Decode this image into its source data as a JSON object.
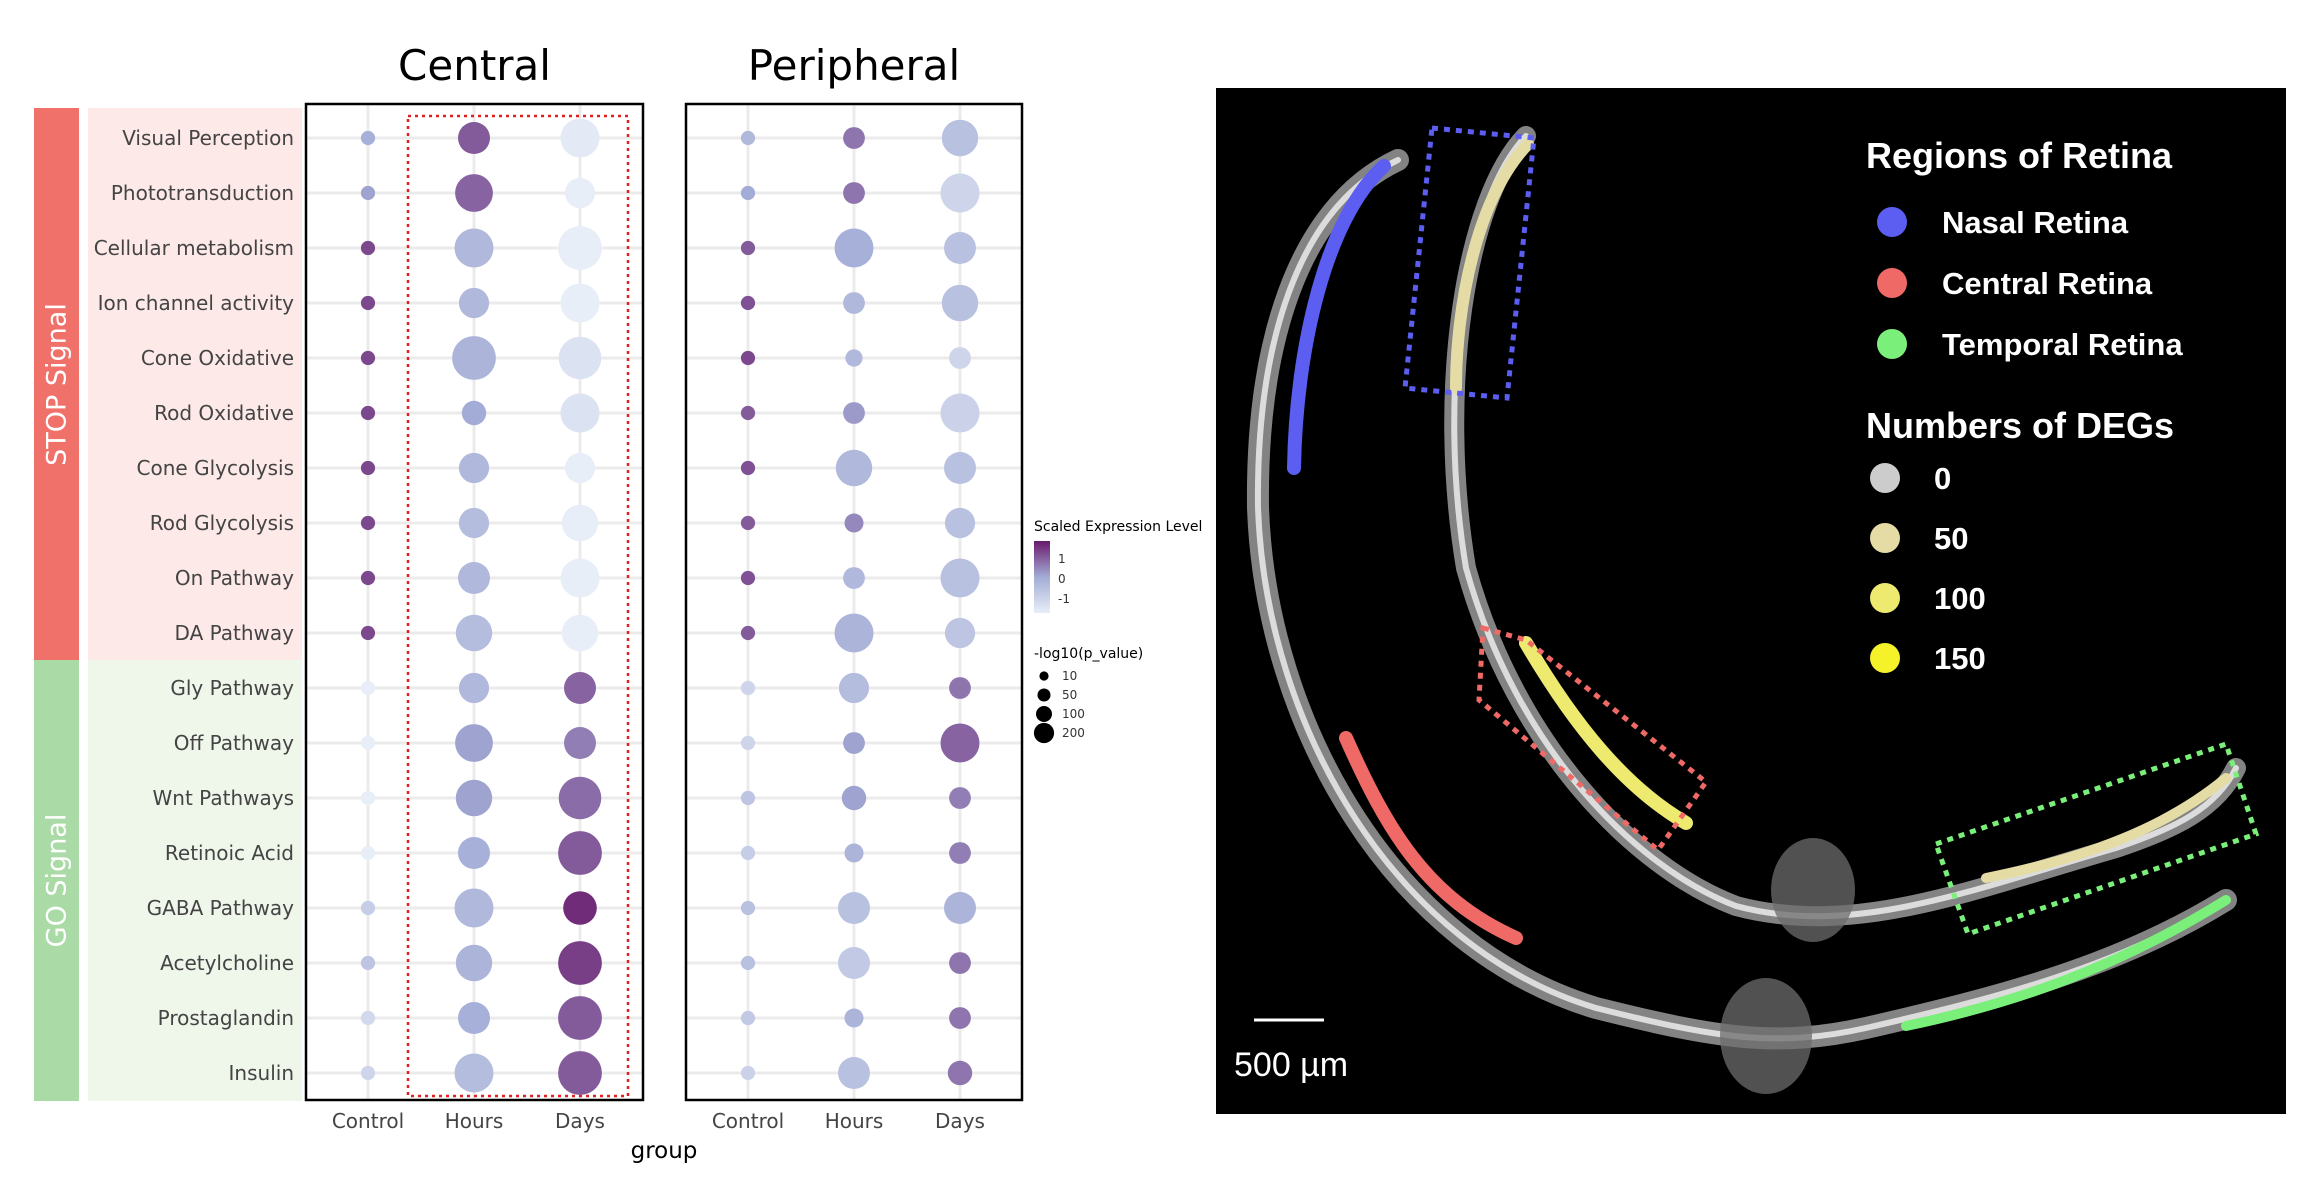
{
  "chart_data": [
    {
      "type": "scatter",
      "subtype": "dot-plot",
      "panels": [
        "Central",
        "Peripheral"
      ],
      "groups": [
        "Control",
        "Hours",
        "Days"
      ],
      "xlabel": "group",
      "sections": [
        {
          "label": "STOP Signal",
          "color": "#ef716a",
          "rows": 10
        },
        {
          "label": "GO Signal",
          "color": "#aadba6",
          "rows": 8
        }
      ],
      "pathways": [
        "Visual Perception",
        "Phototransduction",
        "Cellular metabolism",
        "Ion channel activity",
        "Cone Oxidative",
        "Rod Oxidative",
        "Cone Glycolysis",
        "Rod Glycolysis",
        "On Pathway",
        "DA Pathway",
        "Gly Pathway",
        "Off Pathway",
        "Wnt Pathways",
        "Retinoic Acid",
        "GABA Pathway",
        "Acetylcholine",
        "Prostaglandin",
        "Insulin"
      ],
      "color_legend": {
        "title": "Scaled Expression Level",
        "ticks": [
          1,
          0,
          -1
        ],
        "low_color": "#e8eef7",
        "mid_color": "#a3acd6",
        "high_color": "#6a1a6c"
      },
      "size_legend": {
        "title": "-log10(p_value)",
        "values": [
          10,
          50,
          100,
          200
        ]
      },
      "highlight": {
        "panel": "Central",
        "groups": [
          "Hours",
          "Days"
        ],
        "style": "red dotted box"
      },
      "central": {
        "expression": [
          [
            0.3,
            1.3,
            -1.1
          ],
          [
            0.5,
            1.2,
            -1.4
          ],
          [
            1.5,
            0.1,
            -1.6
          ],
          [
            1.5,
            0.1,
            -1.3
          ],
          [
            1.5,
            0.2,
            -0.9
          ],
          [
            1.5,
            0.4,
            -0.9
          ],
          [
            1.5,
            0.1,
            -1.5
          ],
          [
            1.5,
            0.0,
            -1.6
          ],
          [
            1.5,
            0.1,
            -1.4
          ],
          [
            1.5,
            0.0,
            -1.4
          ],
          [
            -1.2,
            0.1,
            1.2
          ],
          [
            -1.4,
            0.5,
            0.9
          ],
          [
            -1.3,
            0.5,
            1.1
          ],
          [
            -1.3,
            0.3,
            1.3
          ],
          [
            -0.4,
            0.1,
            1.8
          ],
          [
            -0.2,
            0.2,
            1.6
          ],
          [
            -0.7,
            0.3,
            1.3
          ],
          [
            -0.6,
            0.0,
            1.3
          ]
        ],
        "neg_log10_p": [
          [
            8,
            80,
            130
          ],
          [
            8,
            120,
            70
          ],
          [
            8,
            130,
            170
          ],
          [
            8,
            70,
            130
          ],
          [
            8,
            170,
            160
          ],
          [
            8,
            40,
            130
          ],
          [
            8,
            70,
            70
          ],
          [
            8,
            70,
            110
          ],
          [
            8,
            80,
            130
          ],
          [
            8,
            110,
            110
          ],
          [
            8,
            70,
            80
          ],
          [
            8,
            120,
            80
          ],
          [
            8,
            110,
            160
          ],
          [
            8,
            80,
            170
          ],
          [
            8,
            130,
            90
          ],
          [
            8,
            110,
            170
          ],
          [
            8,
            80,
            170
          ],
          [
            8,
            130,
            170
          ]
        ]
      },
      "peripheral": {
        "expression": [
          [
            0.1,
            1.0,
            -0.1
          ],
          [
            0.4,
            1.0,
            -0.6
          ],
          [
            1.3,
            0.3,
            -0.1
          ],
          [
            1.4,
            0.1,
            -0.1
          ],
          [
            1.5,
            0.1,
            -0.6
          ],
          [
            1.3,
            0.6,
            -0.5
          ],
          [
            1.4,
            0.1,
            -0.1
          ],
          [
            1.3,
            0.8,
            -0.1
          ],
          [
            1.4,
            0.1,
            -0.1
          ],
          [
            1.3,
            0.2,
            -0.2
          ],
          [
            -0.6,
            0.0,
            1.0
          ],
          [
            -0.6,
            0.5,
            1.2
          ],
          [
            -0.2,
            0.5,
            0.9
          ],
          [
            -0.4,
            0.2,
            0.9
          ],
          [
            -0.1,
            -0.1,
            0.2
          ],
          [
            -0.1,
            -0.3,
            1.0
          ],
          [
            -0.3,
            0.2,
            1.0
          ],
          [
            -0.5,
            -0.1,
            1.0
          ]
        ],
        "neg_log10_p": [
          [
            8,
            30,
            110
          ],
          [
            8,
            30,
            130
          ],
          [
            8,
            130,
            80
          ],
          [
            8,
            30,
            110
          ],
          [
            8,
            15,
            30
          ],
          [
            8,
            30,
            130
          ],
          [
            8,
            110,
            80
          ],
          [
            8,
            20,
            70
          ],
          [
            8,
            30,
            130
          ],
          [
            8,
            130,
            70
          ],
          [
            8,
            70,
            30
          ],
          [
            8,
            30,
            130
          ],
          [
            8,
            40,
            30
          ],
          [
            8,
            20,
            30
          ],
          [
            8,
            80,
            80
          ],
          [
            8,
            80,
            30
          ],
          [
            8,
            20,
            30
          ],
          [
            8,
            80,
            40
          ]
        ]
      }
    },
    {
      "type": "other",
      "subtype": "retina-section-image",
      "legend_regions_title": "Regions of Retina",
      "regions": [
        {
          "label": "Nasal Retina",
          "color": "#5b5ef0"
        },
        {
          "label": "Central Retina",
          "color": "#ef6a66"
        },
        {
          "label": "Temporal Retina",
          "color": "#7af07a"
        }
      ],
      "legend_degs_title": "Numbers of DEGs",
      "degs": [
        {
          "label": "0",
          "color": "#cccccc"
        },
        {
          "label": "50",
          "color": "#e4dca4"
        },
        {
          "label": "100",
          "color": "#eeea70"
        },
        {
          "label": "150",
          "color": "#f6f22a"
        }
      ],
      "scale_bar": "500 µm"
    }
  ]
}
